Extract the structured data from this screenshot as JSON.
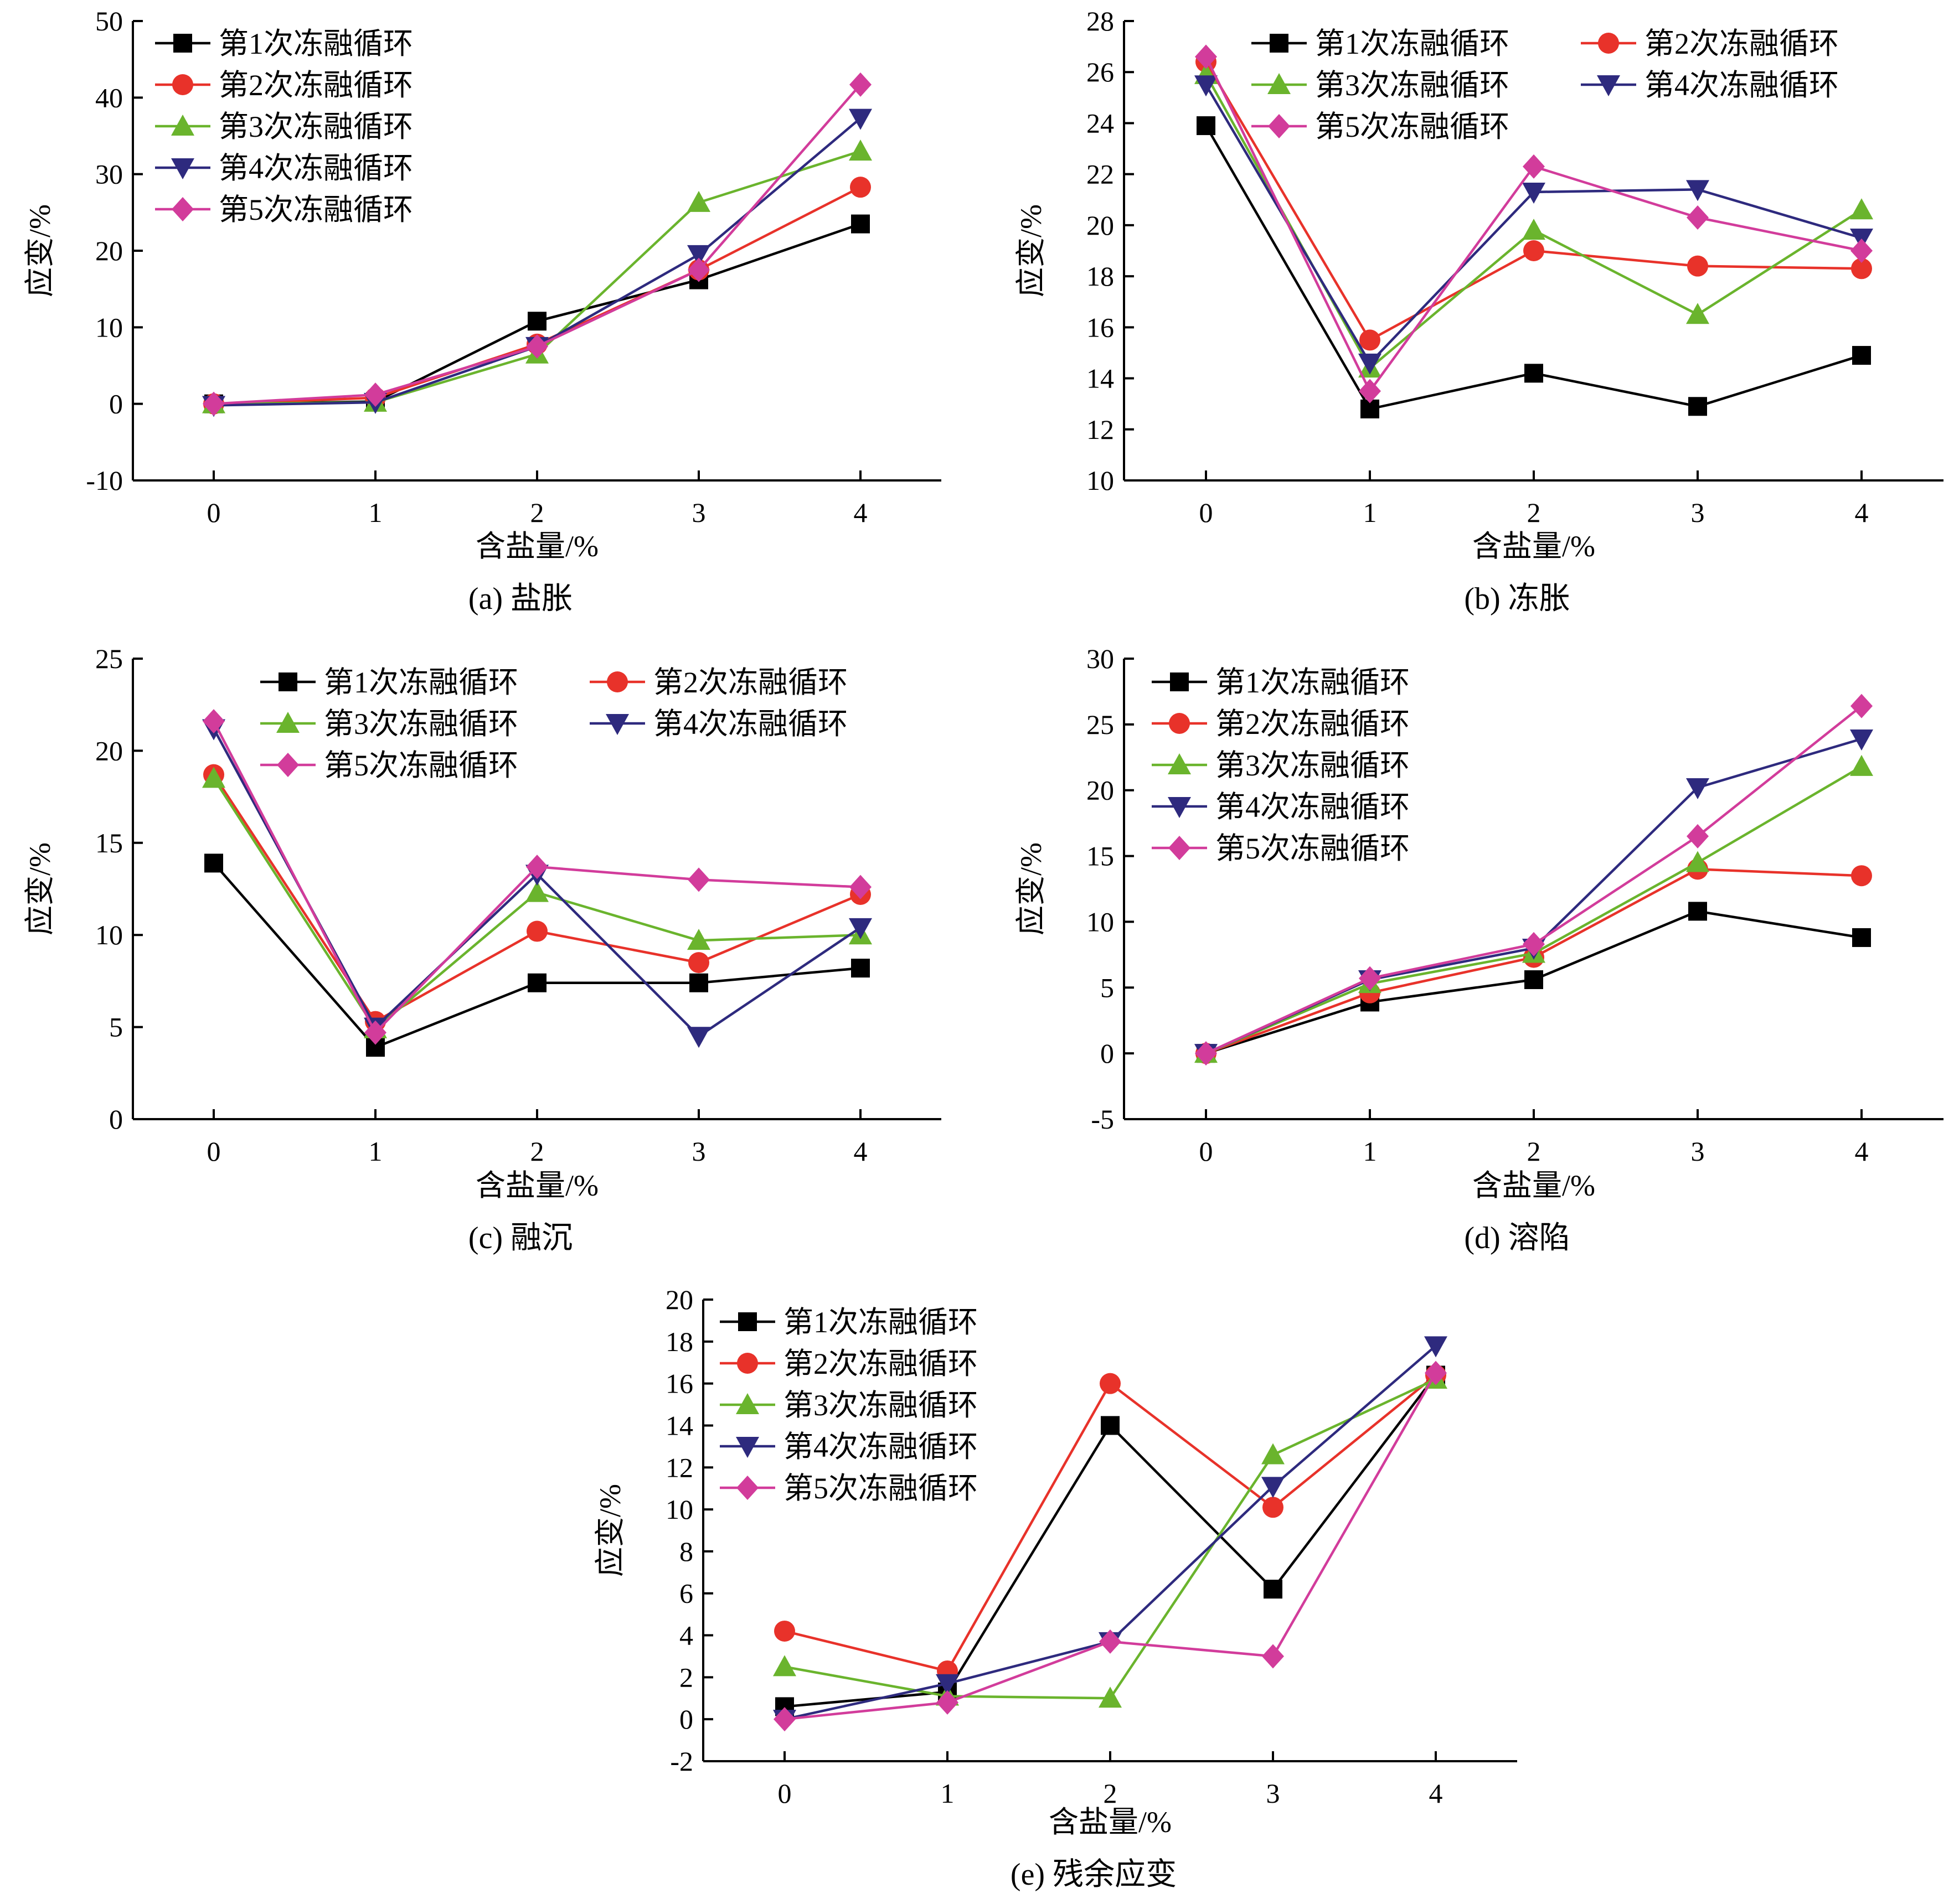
{
  "figure": {
    "panels": [
      {
        "id": "a",
        "caption": "(a) 盐胀"
      },
      {
        "id": "b",
        "caption": "(b) 冻胀"
      },
      {
        "id": "c",
        "caption": "(c) 融沉"
      },
      {
        "id": "d",
        "caption": "(d) 溶陷"
      },
      {
        "id": "e",
        "caption": "(e) 残余应变"
      }
    ]
  },
  "colors": {
    "series1": "#000000",
    "series2": "#e8322a",
    "series3": "#6ab42d",
    "series4": "#2e2a7e",
    "series5": "#d23c9b"
  },
  "chart_data": [
    {
      "type": "line",
      "caption": "(a) 盐胀",
      "xlabel": "含盐量/%",
      "ylabel": "应变/%",
      "x": [
        0,
        1,
        2,
        3,
        4
      ],
      "xlim": [
        -0.5,
        4.5
      ],
      "ylim": [
        -10,
        50
      ],
      "yticks": [
        -10,
        0,
        10,
        20,
        30,
        40,
        50
      ],
      "legend": {
        "position": "top-left",
        "columns": 1
      },
      "series": [
        {
          "name": "第1次冻融循环",
          "marker": "square",
          "values": [
            0,
            0.3,
            10.8,
            16.2,
            23.5
          ]
        },
        {
          "name": "第2次冻融循环",
          "marker": "circle",
          "values": [
            0,
            0.8,
            7.8,
            17.5,
            28.3
          ]
        },
        {
          "name": "第3次冻融循环",
          "marker": "triangle-up",
          "values": [
            0,
            0.2,
            6.5,
            26.3,
            33.0
          ]
        },
        {
          "name": "第4次冻融循环",
          "marker": "triangle-down",
          "values": [
            -0.2,
            0.2,
            7.5,
            19.5,
            37.3
          ]
        },
        {
          "name": "第5次冻融循环",
          "marker": "diamond",
          "values": [
            0,
            1.2,
            7.5,
            17.5,
            41.7
          ]
        }
      ]
    },
    {
      "type": "line",
      "caption": "(b) 冻胀",
      "xlabel": "含盐量/%",
      "ylabel": "应变/%",
      "x": [
        0,
        1,
        2,
        3,
        4
      ],
      "xlim": [
        -0.5,
        4.5
      ],
      "ylim": [
        10,
        28
      ],
      "yticks": [
        10,
        12,
        14,
        16,
        18,
        20,
        22,
        24,
        26,
        28
      ],
      "legend": {
        "position": "top",
        "columns": 2
      },
      "series": [
        {
          "name": "第1次冻融循环",
          "marker": "square",
          "values": [
            23.9,
            12.8,
            14.2,
            12.9,
            14.9
          ]
        },
        {
          "name": "第2次冻融循环",
          "marker": "circle",
          "values": [
            26.4,
            15.5,
            19.0,
            18.4,
            18.3
          ]
        },
        {
          "name": "第3次冻融循环",
          "marker": "triangle-up",
          "values": [
            25.9,
            14.4,
            19.8,
            16.5,
            20.6
          ]
        },
        {
          "name": "第4次冻融循环",
          "marker": "triangle-down",
          "values": [
            25.5,
            14.6,
            21.3,
            21.4,
            19.5
          ]
        },
        {
          "name": "第5次冻融循环",
          "marker": "diamond",
          "values": [
            26.6,
            13.5,
            22.3,
            20.3,
            19.0
          ]
        }
      ]
    },
    {
      "type": "line",
      "caption": "(c) 融沉",
      "xlabel": "含盐量/%",
      "ylabel": "应变/%",
      "x": [
        0,
        1,
        2,
        3,
        4
      ],
      "xlim": [
        -0.5,
        4.5
      ],
      "ylim": [
        0,
        25
      ],
      "yticks": [
        0,
        5,
        10,
        15,
        20,
        25
      ],
      "legend": {
        "position": "top-right",
        "columns": 2
      },
      "series": [
        {
          "name": "第1次冻融循环",
          "marker": "square",
          "values": [
            13.9,
            3.9,
            7.4,
            7.4,
            8.2
          ]
        },
        {
          "name": "第2次冻融循环",
          "marker": "circle",
          "values": [
            18.7,
            5.3,
            10.2,
            8.5,
            12.2
          ]
        },
        {
          "name": "第3次冻融循环",
          "marker": "triangle-up",
          "values": [
            18.5,
            4.9,
            12.3,
            9.7,
            10.0
          ]
        },
        {
          "name": "第4次冻融循环",
          "marker": "triangle-down",
          "values": [
            21.2,
            5.0,
            13.3,
            4.5,
            10.4
          ]
        },
        {
          "name": "第5次冻融循环",
          "marker": "diamond",
          "values": [
            21.6,
            4.7,
            13.7,
            13.0,
            12.6
          ]
        }
      ]
    },
    {
      "type": "line",
      "caption": "(d) 溶陷",
      "xlabel": "含盐量/%",
      "ylabel": "应变/%",
      "x": [
        0,
        1,
        2,
        3,
        4
      ],
      "xlim": [
        -0.5,
        4.5
      ],
      "ylim": [
        -5,
        30
      ],
      "yticks": [
        -5,
        0,
        5,
        10,
        15,
        20,
        25,
        30
      ],
      "legend": {
        "position": "top-left",
        "columns": 1
      },
      "series": [
        {
          "name": "第1次冻融循环",
          "marker": "square",
          "values": [
            0,
            3.9,
            5.6,
            10.8,
            8.8
          ]
        },
        {
          "name": "第2次冻融循环",
          "marker": "circle",
          "values": [
            0,
            4.6,
            7.3,
            14.0,
            13.5
          ]
        },
        {
          "name": "第3次冻融循环",
          "marker": "triangle-up",
          "values": [
            0,
            5.3,
            7.6,
            14.5,
            21.8
          ]
        },
        {
          "name": "第4次冻融循环",
          "marker": "triangle-down",
          "values": [
            0,
            5.6,
            8.0,
            20.2,
            23.9
          ]
        },
        {
          "name": "第5次冻融循环",
          "marker": "diamond",
          "values": [
            0,
            5.7,
            8.3,
            16.5,
            26.4
          ]
        }
      ]
    },
    {
      "type": "line",
      "caption": "(e) 残余应变",
      "xlabel": "含盐量/%",
      "ylabel": "应变/%",
      "x": [
        0,
        1,
        2,
        3,
        4
      ],
      "xlim": [
        -0.5,
        4.5
      ],
      "ylim": [
        -2,
        20
      ],
      "yticks": [
        -2,
        0,
        2,
        4,
        6,
        8,
        10,
        12,
        14,
        16,
        18,
        20
      ],
      "legend": {
        "position": "top-left",
        "columns": 1
      },
      "series": [
        {
          "name": "第1次冻融循环",
          "marker": "square",
          "values": [
            0.6,
            1.3,
            14.0,
            6.2,
            16.4
          ]
        },
        {
          "name": "第2次冻融循环",
          "marker": "circle",
          "values": [
            4.2,
            2.3,
            16.0,
            10.1,
            16.4
          ]
        },
        {
          "name": "第3次冻融循环",
          "marker": "triangle-up",
          "values": [
            2.5,
            1.1,
            1.0,
            12.6,
            16.2
          ]
        },
        {
          "name": "第4次冻融循环",
          "marker": "triangle-down",
          "values": [
            0,
            1.7,
            3.7,
            11.1,
            17.8
          ]
        },
        {
          "name": "第5次冻融循环",
          "marker": "diamond",
          "values": [
            0,
            0.8,
            3.7,
            3.0,
            16.5
          ]
        }
      ]
    }
  ]
}
